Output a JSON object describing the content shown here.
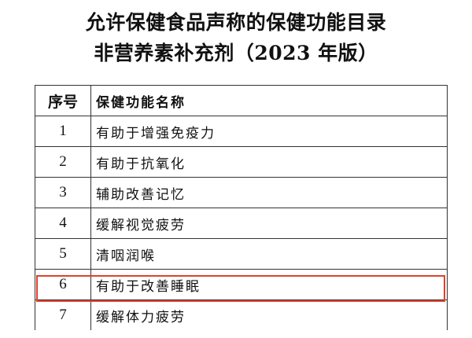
{
  "title": {
    "line1": "允许保健食品声称的保健功能目录",
    "line2": "非营养素补充剂（2023 年版）"
  },
  "table": {
    "headers": [
      "序号",
      "保健功能名称"
    ],
    "rows": [
      {
        "no": "1",
        "name": "有助于增强免疫力"
      },
      {
        "no": "2",
        "name": "有助于抗氧化"
      },
      {
        "no": "3",
        "name": "辅助改善记忆"
      },
      {
        "no": "4",
        "name": "缓解视觉疲劳"
      },
      {
        "no": "5",
        "name": "清咽润喉"
      },
      {
        "no": "6",
        "name": "有助于改善睡眠"
      },
      {
        "no": "7",
        "name": "缓解体力疲劳"
      }
    ],
    "highlighted_row": "6",
    "highlight_color": "#e0412b"
  }
}
